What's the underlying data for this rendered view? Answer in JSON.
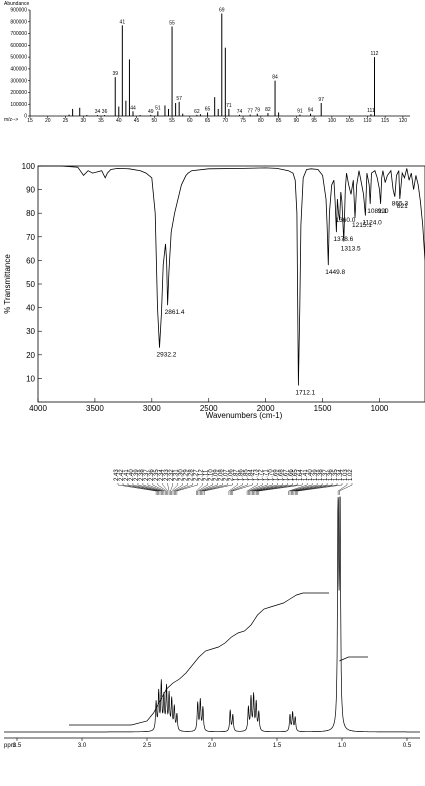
{
  "chart_data": [
    {
      "type": "bar",
      "name": "mass-spectrum",
      "title": "",
      "ylabel": "Abundance",
      "xlabel": "m/z-->",
      "xlim": [
        15,
        122
      ],
      "ylim": [
        0,
        900000
      ],
      "ytick_labels": [
        "900000",
        "800000",
        "700000",
        "600000",
        "500000",
        "400000",
        "300000",
        "200000",
        "100000",
        "0"
      ],
      "ytick_values": [
        900000,
        800000,
        700000,
        600000,
        500000,
        400000,
        300000,
        200000,
        100000,
        0
      ],
      "xtick_labels": [
        "15",
        "20",
        "25",
        "30",
        "35",
        "40",
        "45",
        "50",
        "55",
        "60",
        "65",
        "70",
        "75",
        "80",
        "85",
        "90",
        "95",
        "100",
        "105",
        "110",
        "115",
        "120"
      ],
      "xtick_values": [
        15,
        20,
        25,
        30,
        35,
        40,
        45,
        50,
        55,
        60,
        65,
        70,
        75,
        80,
        85,
        90,
        95,
        100,
        105,
        110,
        115,
        120
      ],
      "peaks": [
        {
          "mz": 26,
          "value": 12000
        },
        {
          "mz": 27,
          "value": 60000
        },
        {
          "mz": 29,
          "value": 70000
        },
        {
          "mz": 31,
          "value": 8000
        },
        {
          "mz": 34,
          "value": 8000
        },
        {
          "mz": 36,
          "value": 8000
        },
        {
          "mz": 39,
          "value": 330000
        },
        {
          "mz": 40,
          "value": 80000
        },
        {
          "mz": 41,
          "value": 770000
        },
        {
          "mz": 42,
          "value": 130000
        },
        {
          "mz": 43,
          "value": 480000
        },
        {
          "mz": 44,
          "value": 40000
        },
        {
          "mz": 46,
          "value": 8000
        },
        {
          "mz": 49,
          "value": 10000
        },
        {
          "mz": 51,
          "value": 40000
        },
        {
          "mz": 53,
          "value": 90000
        },
        {
          "mz": 54,
          "value": 60000
        },
        {
          "mz": 55,
          "value": 760000
        },
        {
          "mz": 56,
          "value": 110000
        },
        {
          "mz": 57,
          "value": 120000
        },
        {
          "mz": 58,
          "value": 20000
        },
        {
          "mz": 62,
          "value": 10000
        },
        {
          "mz": 63,
          "value": 15000
        },
        {
          "mz": 65,
          "value": 30000
        },
        {
          "mz": 67,
          "value": 160000
        },
        {
          "mz": 68,
          "value": 60000
        },
        {
          "mz": 69,
          "value": 870000
        },
        {
          "mz": 70,
          "value": 580000
        },
        {
          "mz": 71,
          "value": 60000
        },
        {
          "mz": 74,
          "value": 10000
        },
        {
          "mz": 77,
          "value": 12000
        },
        {
          "mz": 79,
          "value": 20000
        },
        {
          "mz": 82,
          "value": 25000
        },
        {
          "mz": 84,
          "value": 300000
        },
        {
          "mz": 85,
          "value": 30000
        },
        {
          "mz": 91,
          "value": 12000
        },
        {
          "mz": 94,
          "value": 20000
        },
        {
          "mz": 97,
          "value": 110000
        },
        {
          "mz": 111,
          "value": 15000
        },
        {
          "mz": 112,
          "value": 500000
        }
      ],
      "peak_labels": [
        {
          "mz": 36,
          "text": "36"
        },
        {
          "mz": 34,
          "text": "34"
        },
        {
          "mz": 39,
          "text": "39"
        },
        {
          "mz": 41,
          "text": "41"
        },
        {
          "mz": 44,
          "text": "44"
        },
        {
          "mz": 49,
          "text": "49"
        },
        {
          "mz": 51,
          "text": "51"
        },
        {
          "mz": 55,
          "text": "55"
        },
        {
          "mz": 57,
          "text": "57"
        },
        {
          "mz": 62,
          "text": "62"
        },
        {
          "mz": 65,
          "text": "65"
        },
        {
          "mz": 69,
          "text": "69"
        },
        {
          "mz": 71,
          "text": "71"
        },
        {
          "mz": 74,
          "text": "74"
        },
        {
          "mz": 77,
          "text": "77"
        },
        {
          "mz": 79,
          "text": "79"
        },
        {
          "mz": 82,
          "text": "82"
        },
        {
          "mz": 84,
          "text": "84"
        },
        {
          "mz": 91,
          "text": "91"
        },
        {
          "mz": 94,
          "text": "94"
        },
        {
          "mz": 97,
          "text": "97"
        },
        {
          "mz": 111,
          "text": "111"
        },
        {
          "mz": 112,
          "text": "112"
        }
      ]
    },
    {
      "type": "line",
      "name": "ir-spectrum",
      "title": "",
      "xlabel": "Wavenumbers (cm-1)",
      "ylabel": "% Transmittance",
      "xlim": [
        4000,
        600
      ],
      "ylim": [
        0,
        100
      ],
      "xtick_labels": [
        "4000",
        "3500",
        "3000",
        "2500",
        "2000",
        "1500",
        "1000"
      ],
      "xtick_values": [
        4000,
        3500,
        3000,
        2500,
        2000,
        1500,
        1000
      ],
      "ytick_labels": [
        "100",
        "90",
        "80",
        "70",
        "60",
        "50",
        "40",
        "30",
        "20",
        "10"
      ],
      "ytick_values": [
        100,
        90,
        80,
        70,
        60,
        50,
        40,
        30,
        20,
        10
      ],
      "x": [
        4000,
        3800,
        3650,
        3600,
        3560,
        3520,
        3440,
        3410,
        3390,
        3360,
        3300,
        3200,
        3100,
        3050,
        3000,
        2970,
        2950,
        2932.2,
        2915,
        2900,
        2880,
        2870,
        2861.4,
        2850,
        2830,
        2800,
        2740,
        2700,
        2680,
        2650,
        2500,
        2200,
        2000,
        1900,
        1800,
        1760,
        1740,
        1725,
        1712.1,
        1700,
        1690,
        1670,
        1640,
        1600,
        1540,
        1500,
        1470,
        1460,
        1449.8,
        1440,
        1420,
        1400,
        1390,
        1378.6,
        1370,
        1360,
        1350,
        1340,
        1330,
        1313.5,
        1300,
        1290,
        1270,
        1250,
        1230,
        1215.1,
        1200,
        1180,
        1160,
        1140,
        1124,
        1110,
        1090,
        1081.1,
        1070,
        1040,
        1020,
        1000,
        990,
        980,
        970,
        950,
        930,
        900,
        880,
        865.3,
        850,
        830,
        821,
        800,
        780,
        760,
        740,
        720,
        700,
        680,
        660,
        640,
        620,
        600
      ],
      "y": [
        100,
        100,
        99.5,
        96,
        98,
        97,
        98,
        95,
        97,
        98.5,
        99,
        98.8,
        98,
        97,
        95,
        80,
        40,
        23,
        38,
        58,
        67,
        60,
        41,
        55,
        72,
        80,
        92,
        96,
        97,
        98,
        98.8,
        99,
        99.2,
        99,
        98,
        97,
        94,
        80,
        7,
        40,
        75,
        95,
        98.5,
        98.8,
        98.5,
        96,
        86,
        75,
        58,
        80,
        92,
        94,
        85,
        72,
        86,
        80,
        77,
        89,
        85,
        68,
        90,
        97,
        92,
        88,
        94,
        78,
        92,
        98,
        93,
        88,
        79,
        97,
        92,
        84,
        97,
        98,
        95,
        90,
        84,
        95,
        98,
        93,
        96,
        98,
        90,
        87,
        96,
        98,
        86,
        97,
        95,
        99,
        94,
        97,
        90,
        96,
        92,
        85,
        75,
        60
      ],
      "peak_labels": [
        {
          "wn": 2932.2,
          "t": 23,
          "text": "2932.2"
        },
        {
          "wn": 2861.4,
          "t": 41,
          "text": "2861.4"
        },
        {
          "wn": 1712.1,
          "t": 7,
          "text": "1712.1"
        },
        {
          "wn": 1449.8,
          "t": 58,
          "text": "1449.8"
        },
        {
          "wn": 1378.6,
          "t": 72,
          "text": "1378.6"
        },
        {
          "wn": 1360,
          "t": 80,
          "text": "1360.0"
        },
        {
          "wn": 1313.5,
          "t": 68,
          "text": "1313.5"
        },
        {
          "wn": 1215.1,
          "t": 78,
          "text": "1215.1"
        },
        {
          "wn": 1124,
          "t": 79,
          "text": "1124.0"
        },
        {
          "wn": 1081.1,
          "t": 84,
          "text": "1081.1"
        },
        {
          "wn": 990,
          "t": 84,
          "text": "990"
        },
        {
          "wn": 865.3,
          "t": 87,
          "text": "865.3"
        },
        {
          "wn": 821,
          "t": 86,
          "text": "821"
        }
      ]
    },
    {
      "type": "line",
      "name": "nmr-spectrum",
      "title": "",
      "xlabel": "ppm",
      "xlim": [
        3.6,
        0.4
      ],
      "xtick_labels": [
        "3.5",
        "3.0",
        "2.5",
        "2.0",
        "1.5",
        "1.0",
        "0.5"
      ],
      "xtick_values": [
        3.5,
        3.0,
        2.5,
        2.0,
        1.5,
        1.0,
        0.5
      ],
      "peak_list_labels": [
        "2.43",
        "2.42",
        "2.41",
        "2.40",
        "2.39",
        "2.38",
        "2.37",
        "2.36",
        "2.35",
        "2.34",
        "2.33",
        "2.32",
        "2.31",
        "2.30",
        "2.29",
        "2.28",
        "2.27",
        "2.12",
        "2.11",
        "2.10",
        "2.09",
        "2.08",
        "2.07",
        "2.06",
        "1.87",
        "1.86",
        "1.85",
        "1.84",
        "1.73",
        "1.72",
        "1.71",
        "1.70",
        "1.69",
        "1.68",
        "1.67",
        "1.66",
        "1.65",
        "1.64",
        "1.41",
        "1.40",
        "1.39",
        "1.38",
        "1.37",
        "1.36",
        "1.35",
        "1.34",
        "1.03",
        "1.02"
      ],
      "peaks": [
        {
          "ppm": 2.43,
          "h": 0.12
        },
        {
          "ppm": 2.41,
          "h": 0.16
        },
        {
          "ppm": 2.39,
          "h": 0.2
        },
        {
          "ppm": 2.37,
          "h": 0.14
        },
        {
          "ppm": 2.35,
          "h": 0.18
        },
        {
          "ppm": 2.33,
          "h": 0.15
        },
        {
          "ppm": 2.31,
          "h": 0.13
        },
        {
          "ppm": 2.29,
          "h": 0.1
        },
        {
          "ppm": 2.27,
          "h": 0.07
        },
        {
          "ppm": 2.11,
          "h": 0.12
        },
        {
          "ppm": 2.09,
          "h": 0.13
        },
        {
          "ppm": 2.07,
          "h": 0.1
        },
        {
          "ppm": 1.86,
          "h": 0.09
        },
        {
          "ppm": 1.84,
          "h": 0.07
        },
        {
          "ppm": 1.72,
          "h": 0.1
        },
        {
          "ppm": 1.7,
          "h": 0.14
        },
        {
          "ppm": 1.68,
          "h": 0.15
        },
        {
          "ppm": 1.66,
          "h": 0.12
        },
        {
          "ppm": 1.64,
          "h": 0.08
        },
        {
          "ppm": 1.4,
          "h": 0.07
        },
        {
          "ppm": 1.38,
          "h": 0.08
        },
        {
          "ppm": 1.36,
          "h": 0.06
        },
        {
          "ppm": 1.03,
          "h": 1.0
        },
        {
          "ppm": 1.015,
          "h": 0.95
        }
      ],
      "integral_x": [
        2.62,
        2.5,
        2.45,
        2.4,
        2.35,
        2.3,
        2.25,
        2.2,
        2.15,
        2.1,
        2.05,
        2.0,
        1.95,
        1.9,
        1.85,
        1.8,
        1.75,
        1.7,
        1.65,
        1.6,
        1.55,
        1.5,
        1.45,
        1.4,
        1.35,
        1.3,
        1.25
      ],
      "integral_y": [
        0.0,
        0.02,
        0.06,
        0.12,
        0.18,
        0.21,
        0.23,
        0.26,
        0.3,
        0.34,
        0.37,
        0.38,
        0.39,
        0.41,
        0.44,
        0.46,
        0.47,
        0.5,
        0.55,
        0.58,
        0.59,
        0.6,
        0.61,
        0.63,
        0.65,
        0.66,
        0.66
      ],
      "integral2_x": [
        1.02,
        0.95,
        0.8
      ],
      "integral2_y": [
        0.0,
        0.02,
        0.02
      ]
    }
  ]
}
